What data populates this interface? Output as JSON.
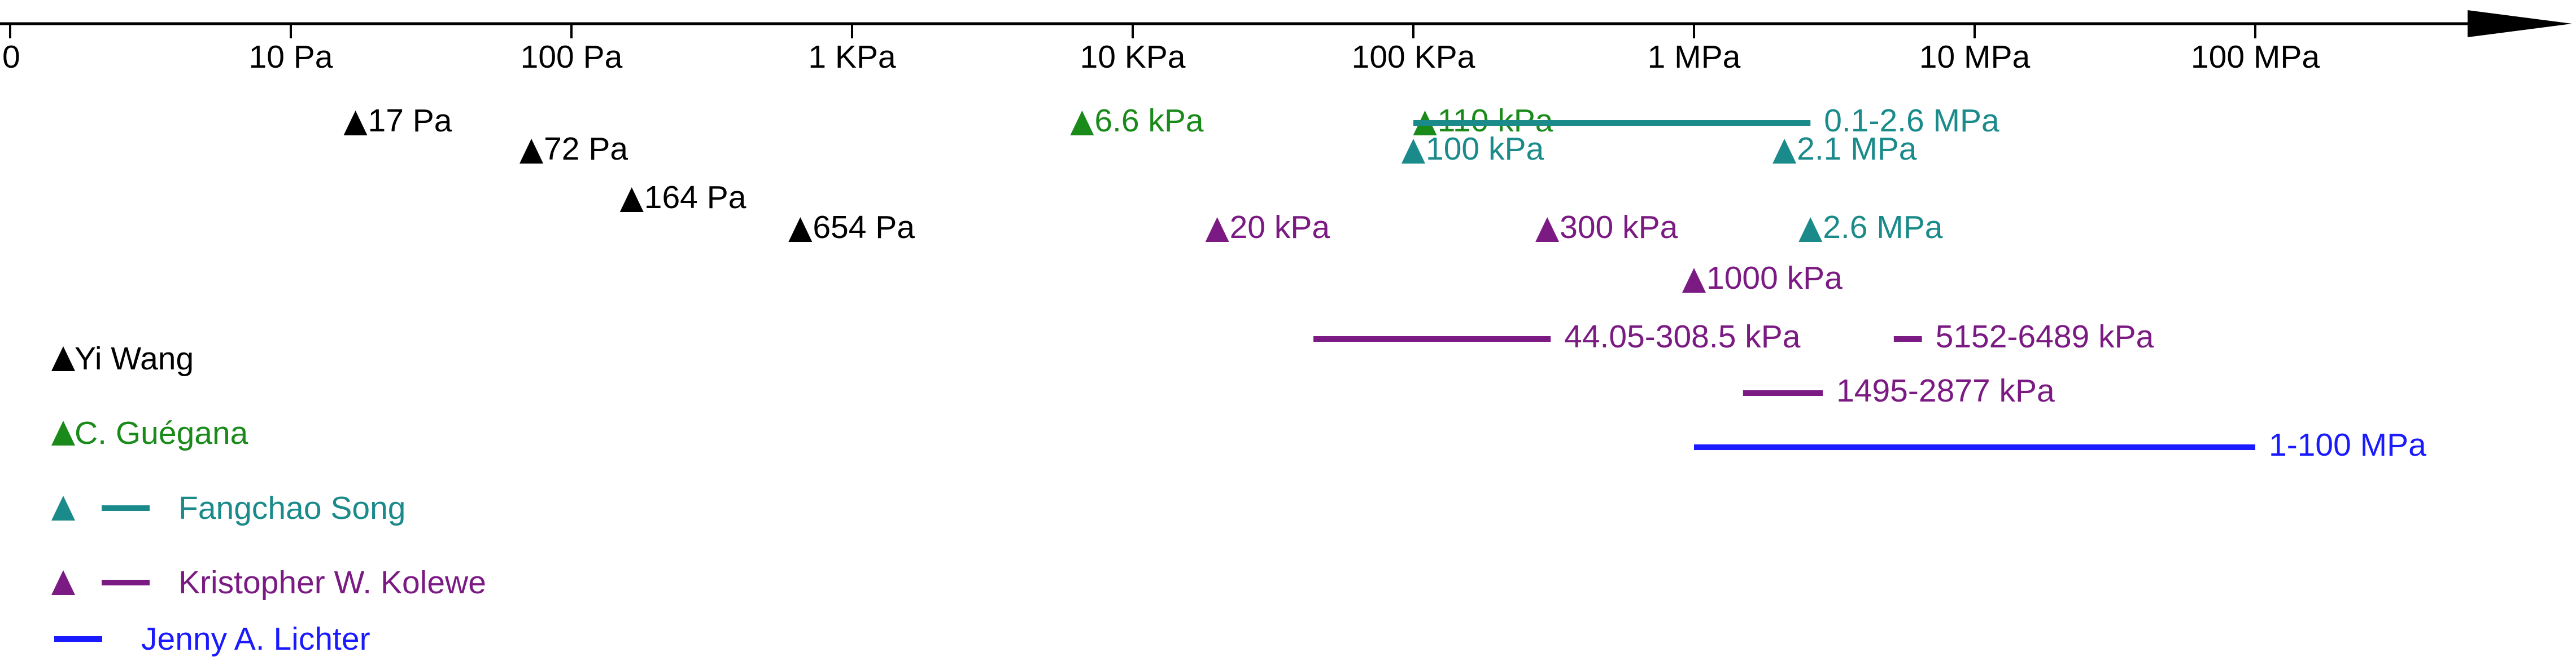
{
  "chart_data": {
    "type": "scatter",
    "title": "",
    "xlabel": "",
    "ylabel": "",
    "x_scale": "log",
    "x_unit": "Pa",
    "grid": false,
    "legend_position": "bottom-left",
    "colors": {
      "axis": "#000000",
      "Yi Wang": "#000000",
      "C. Guégana": "#1a8a1a",
      "Fangchao Song": "#1a8a8a",
      "Kristopher W. Kolewe": "#7a1a82",
      "Jenny A. Lichter": "#1a1aff"
    },
    "ticks": [
      {
        "value": 1,
        "label": "0"
      },
      {
        "value": 10,
        "label": "10 Pa"
      },
      {
        "value": 100,
        "label": "100 Pa"
      },
      {
        "value": 1000,
        "label": "1 KPa"
      },
      {
        "value": 10000,
        "label": "10 KPa"
      },
      {
        "value": 100000,
        "label": "100 KPa"
      },
      {
        "value": 1000000,
        "label": "1 MPa"
      },
      {
        "value": 10000000,
        "label": "10 MPa"
      },
      {
        "value": 100000000,
        "label": "100 MPa"
      }
    ],
    "series": [
      {
        "name": "Yi Wang",
        "points": [
          {
            "x": 17,
            "label": "17 Pa",
            "row": 0
          },
          {
            "x": 72,
            "label": "72 Pa",
            "row": 1
          },
          {
            "x": 164,
            "label": "164 Pa",
            "row": 2
          },
          {
            "x": 654,
            "label": "654 Pa",
            "row": 3
          }
        ],
        "ranges": []
      },
      {
        "name": "C. Guégana",
        "points": [
          {
            "x": 6600,
            "label": "6.6 kPa",
            "row": 0
          },
          {
            "x": 110000,
            "label": "110 kPa",
            "row": 0
          }
        ],
        "ranges": []
      },
      {
        "name": "Fangchao Song",
        "points": [
          {
            "x": 100000,
            "label": "100 kPa",
            "row": 1
          },
          {
            "x": 2100000,
            "label": "2.1 MPa",
            "row": 1
          },
          {
            "x": 2600000,
            "label": "2.6 MPa",
            "row": 3
          }
        ],
        "ranges": [
          {
            "x0": 100000,
            "x1": 2600000,
            "label": "0.1-2.6 MPa",
            "row": 0
          }
        ]
      },
      {
        "name": "Kristopher W. Kolewe",
        "points": [
          {
            "x": 20000,
            "label": "20 kPa",
            "row": 3
          },
          {
            "x": 300000,
            "label": "300 kPa",
            "row": 3
          },
          {
            "x": 1000000,
            "label": "1000 kPa",
            "row": 4
          }
        ],
        "ranges": [
          {
            "x0": 44050,
            "x1": 308500,
            "label": "44.05-308.5 kPa",
            "row": 5
          },
          {
            "x0": 5152000,
            "x1": 6489000,
            "label": "5152-6489 kPa",
            "row": 5
          },
          {
            "x0": 1495000,
            "x1": 2877000,
            "label": "1495-2877 kPa",
            "row": 6
          }
        ]
      },
      {
        "name": "Jenny A. Lichter",
        "points": [],
        "ranges": [
          {
            "x0": 1000000,
            "x1": 100000000,
            "label": "1-100 MPa",
            "row": 7
          }
        ]
      }
    ],
    "legend": [
      {
        "name": "Yi Wang",
        "markers": [
          "triangle"
        ]
      },
      {
        "name": "C. Guégana",
        "markers": [
          "triangle"
        ]
      },
      {
        "name": "Fangchao Song",
        "markers": [
          "triangle",
          "line"
        ]
      },
      {
        "name": "Kristopher W. Kolewe",
        "markers": [
          "triangle",
          "line"
        ]
      },
      {
        "name": "Jenny A. Lichter",
        "markers": [
          "line"
        ]
      }
    ]
  }
}
